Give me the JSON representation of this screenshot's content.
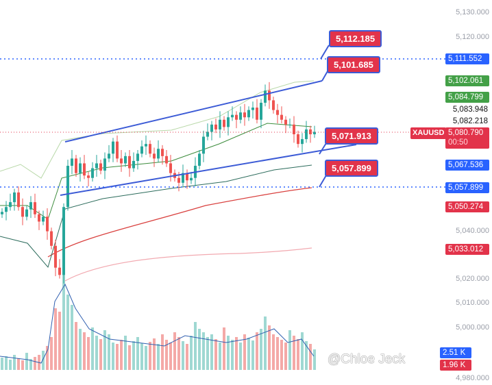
{
  "chart_data": {
    "type": "candlestick",
    "symbol": "XAUUSD",
    "countdown": "00:50",
    "ylim": [
      4980,
      5130
    ],
    "y_ticks": [
      "5,130.000",
      "5,120.000",
      "5,040.000",
      "5,020.000",
      "5,010.000",
      "5,000.000",
      "4,980.000"
    ],
    "closes": [
      5048,
      5050,
      5052,
      5056,
      5050,
      5046,
      5049,
      5052,
      5047,
      5044,
      5046,
      5040,
      5034,
      5025,
      5022,
      5050,
      5067,
      5070,
      5064,
      5068,
      5063,
      5062,
      5066,
      5068,
      5065,
      5070,
      5072,
      5077,
      5070,
      5068,
      5071,
      5066,
      5069,
      5072,
      5075,
      5076,
      5072,
      5070,
      5074,
      5071,
      5068,
      5064,
      5062,
      5060,
      5064,
      5061,
      5062,
      5067,
      5072,
      5079,
      5081,
      5084,
      5082,
      5086,
      5083,
      5087,
      5088,
      5086,
      5089,
      5087,
      5090,
      5091,
      5086,
      5093,
      5098,
      5094,
      5090,
      5088,
      5086,
      5084,
      5084,
      5080,
      5076,
      5078,
      5082,
      5080,
      5081
    ],
    "volumes": [
      18,
      20,
      15,
      22,
      17,
      14,
      25,
      16,
      19,
      22,
      28,
      35,
      48,
      90,
      85,
      140,
      110,
      95,
      70,
      60,
      55,
      48,
      62,
      50,
      45,
      58,
      52,
      40,
      38,
      44,
      50,
      36,
      42,
      48,
      39,
      35,
      41,
      46,
      38,
      52,
      44,
      40,
      55,
      48,
      42,
      38,
      50,
      70,
      60,
      55,
      48,
      52,
      45,
      40,
      62,
      50,
      44,
      48,
      40,
      52,
      47,
      43,
      55,
      60,
      78,
      65,
      52,
      48,
      44,
      40,
      58,
      50,
      45,
      55,
      42,
      38,
      30
    ],
    "price_labels": {
      "line_1": {
        "value": "5,111.552",
        "color": "#2962ff"
      },
      "ma_fast_upper": {
        "value": "5,102.061",
        "color": "#43a047"
      },
      "ma_fast_lower": {
        "value": "5,084.799",
        "color": "#43a047"
      },
      "level_a": "5,083.948",
      "level_b": "5,082.218",
      "last_price": {
        "value": "5,080.790",
        "color": "#e2334a"
      },
      "channel_lower": {
        "value": "5,067.536",
        "color": "#2962ff"
      },
      "line_2": {
        "value": "5,057.899",
        "color": "#2962ff"
      },
      "ma_slow": {
        "value": "5,050.274",
        "color": "#e2334a"
      },
      "ma_slower": {
        "value": "5,033.012",
        "color": "#e2334a"
      },
      "vol_a": {
        "value": "2.51 K",
        "color": "#2962ff"
      },
      "vol_b": {
        "value": "1.96 K",
        "color": "#e2334a"
      }
    },
    "annotations": [
      "5,112.185",
      "5,101.685",
      "5,071.913",
      "5,057.899"
    ],
    "up_color": "#26a69a",
    "down_color": "#ef5350"
  },
  "watermark": "@Chloe Jeck"
}
